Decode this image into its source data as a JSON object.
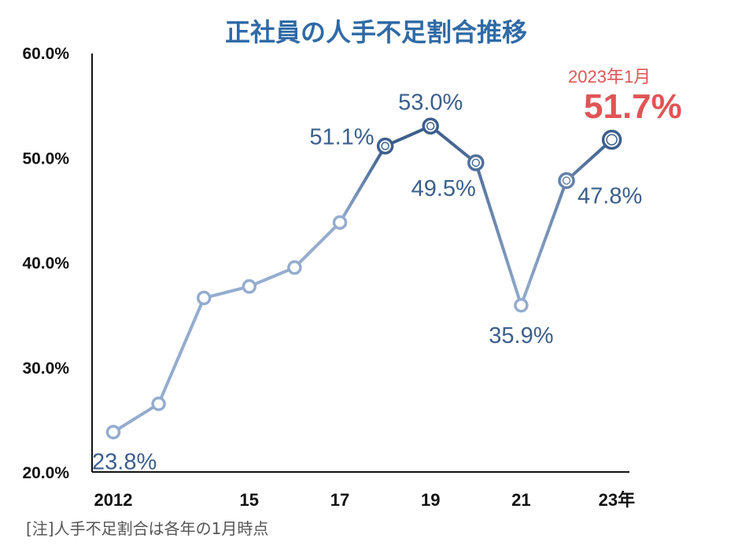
{
  "chart_data": {
    "type": "line",
    "title": "正社員の人手不足割合推移",
    "x": [
      2012,
      2013,
      2014,
      2015,
      2016,
      2017,
      2018,
      2019,
      2020,
      2021,
      2022,
      2023
    ],
    "values": [
      23.8,
      26.5,
      36.6,
      37.7,
      39.5,
      43.8,
      51.1,
      53.0,
      49.5,
      35.9,
      47.8,
      51.7
    ],
    "x_tick_labels": [
      {
        "x": 2012,
        "label": "2012"
      },
      {
        "x": 2015,
        "label": "15"
      },
      {
        "x": 2017,
        "label": "17"
      },
      {
        "x": 2019,
        "label": "19"
      },
      {
        "x": 2021,
        "label": "21"
      },
      {
        "x": 2023,
        "label": "23年"
      }
    ],
    "y_tick_labels": [
      "20.0%",
      "30.0%",
      "40.0%",
      "50.0%",
      "60.0%"
    ],
    "y_ticks": [
      20,
      30,
      40,
      50,
      60
    ],
    "ylim": [
      20,
      60
    ],
    "data_labels": [
      {
        "x": 2012,
        "label": "23.8%"
      },
      {
        "x": 2018,
        "label": "51.1%"
      },
      {
        "x": 2019,
        "label": "53.0%"
      },
      {
        "x": 2020,
        "label": "49.5%"
      },
      {
        "x": 2021,
        "label": "35.9%"
      },
      {
        "x": 2022,
        "label": "47.8%"
      }
    ],
    "highlight": {
      "x": 2023,
      "date_label": "2023年1月",
      "value_label": "51.7%"
    },
    "grid": false,
    "colors": {
      "title": "#2f6aa6",
      "line_light": "#94acce",
      "line_dark": "#3c5f8c",
      "label": "#3c5f8c",
      "highlight": "#e05555"
    }
  },
  "footnote": "[注]人手不足割合は各年の1月時点"
}
